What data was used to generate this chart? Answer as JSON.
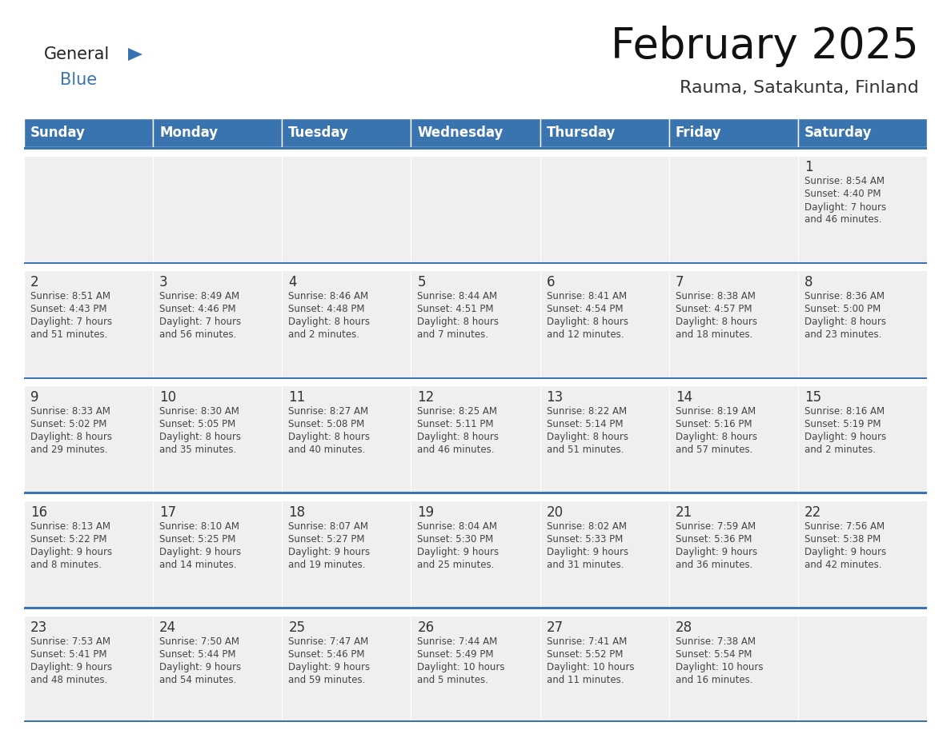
{
  "title": "February 2025",
  "subtitle": "Rauma, Satakunta, Finland",
  "header_color": "#3a74b0",
  "header_text_color": "#ffffff",
  "cell_bg_color": "#efefef",
  "cell_bg_empty": "#ffffff",
  "cell_border_color": "#3a74b0",
  "row_divider_color": "#3a74b0",
  "day_number_color": "#333333",
  "info_text_color": "#444444",
  "bg_color": "#ffffff",
  "days_of_week": [
    "Sunday",
    "Monday",
    "Tuesday",
    "Wednesday",
    "Thursday",
    "Friday",
    "Saturday"
  ],
  "weeks": [
    [
      {
        "day": null,
        "info": ""
      },
      {
        "day": null,
        "info": ""
      },
      {
        "day": null,
        "info": ""
      },
      {
        "day": null,
        "info": ""
      },
      {
        "day": null,
        "info": ""
      },
      {
        "day": null,
        "info": ""
      },
      {
        "day": 1,
        "info": "Sunrise: 8:54 AM\nSunset: 4:40 PM\nDaylight: 7 hours\nand 46 minutes."
      }
    ],
    [
      {
        "day": 2,
        "info": "Sunrise: 8:51 AM\nSunset: 4:43 PM\nDaylight: 7 hours\nand 51 minutes."
      },
      {
        "day": 3,
        "info": "Sunrise: 8:49 AM\nSunset: 4:46 PM\nDaylight: 7 hours\nand 56 minutes."
      },
      {
        "day": 4,
        "info": "Sunrise: 8:46 AM\nSunset: 4:48 PM\nDaylight: 8 hours\nand 2 minutes."
      },
      {
        "day": 5,
        "info": "Sunrise: 8:44 AM\nSunset: 4:51 PM\nDaylight: 8 hours\nand 7 minutes."
      },
      {
        "day": 6,
        "info": "Sunrise: 8:41 AM\nSunset: 4:54 PM\nDaylight: 8 hours\nand 12 minutes."
      },
      {
        "day": 7,
        "info": "Sunrise: 8:38 AM\nSunset: 4:57 PM\nDaylight: 8 hours\nand 18 minutes."
      },
      {
        "day": 8,
        "info": "Sunrise: 8:36 AM\nSunset: 5:00 PM\nDaylight: 8 hours\nand 23 minutes."
      }
    ],
    [
      {
        "day": 9,
        "info": "Sunrise: 8:33 AM\nSunset: 5:02 PM\nDaylight: 8 hours\nand 29 minutes."
      },
      {
        "day": 10,
        "info": "Sunrise: 8:30 AM\nSunset: 5:05 PM\nDaylight: 8 hours\nand 35 minutes."
      },
      {
        "day": 11,
        "info": "Sunrise: 8:27 AM\nSunset: 5:08 PM\nDaylight: 8 hours\nand 40 minutes."
      },
      {
        "day": 12,
        "info": "Sunrise: 8:25 AM\nSunset: 5:11 PM\nDaylight: 8 hours\nand 46 minutes."
      },
      {
        "day": 13,
        "info": "Sunrise: 8:22 AM\nSunset: 5:14 PM\nDaylight: 8 hours\nand 51 minutes."
      },
      {
        "day": 14,
        "info": "Sunrise: 8:19 AM\nSunset: 5:16 PM\nDaylight: 8 hours\nand 57 minutes."
      },
      {
        "day": 15,
        "info": "Sunrise: 8:16 AM\nSunset: 5:19 PM\nDaylight: 9 hours\nand 2 minutes."
      }
    ],
    [
      {
        "day": 16,
        "info": "Sunrise: 8:13 AM\nSunset: 5:22 PM\nDaylight: 9 hours\nand 8 minutes."
      },
      {
        "day": 17,
        "info": "Sunrise: 8:10 AM\nSunset: 5:25 PM\nDaylight: 9 hours\nand 14 minutes."
      },
      {
        "day": 18,
        "info": "Sunrise: 8:07 AM\nSunset: 5:27 PM\nDaylight: 9 hours\nand 19 minutes."
      },
      {
        "day": 19,
        "info": "Sunrise: 8:04 AM\nSunset: 5:30 PM\nDaylight: 9 hours\nand 25 minutes."
      },
      {
        "day": 20,
        "info": "Sunrise: 8:02 AM\nSunset: 5:33 PM\nDaylight: 9 hours\nand 31 minutes."
      },
      {
        "day": 21,
        "info": "Sunrise: 7:59 AM\nSunset: 5:36 PM\nDaylight: 9 hours\nand 36 minutes."
      },
      {
        "day": 22,
        "info": "Sunrise: 7:56 AM\nSunset: 5:38 PM\nDaylight: 9 hours\nand 42 minutes."
      }
    ],
    [
      {
        "day": 23,
        "info": "Sunrise: 7:53 AM\nSunset: 5:41 PM\nDaylight: 9 hours\nand 48 minutes."
      },
      {
        "day": 24,
        "info": "Sunrise: 7:50 AM\nSunset: 5:44 PM\nDaylight: 9 hours\nand 54 minutes."
      },
      {
        "day": 25,
        "info": "Sunrise: 7:47 AM\nSunset: 5:46 PM\nDaylight: 9 hours\nand 59 minutes."
      },
      {
        "day": 26,
        "info": "Sunrise: 7:44 AM\nSunset: 5:49 PM\nDaylight: 10 hours\nand 5 minutes."
      },
      {
        "day": 27,
        "info": "Sunrise: 7:41 AM\nSunset: 5:52 PM\nDaylight: 10 hours\nand 11 minutes."
      },
      {
        "day": 28,
        "info": "Sunrise: 7:38 AM\nSunset: 5:54 PM\nDaylight: 10 hours\nand 16 minutes."
      },
      {
        "day": null,
        "info": ""
      }
    ]
  ],
  "logo_text_general": "General",
  "logo_text_blue": "Blue",
  "logo_color_general": "#222222",
  "logo_color_blue": "#3a74b0",
  "logo_triangle_color": "#3a74b0",
  "title_fontsize": 38,
  "subtitle_fontsize": 16,
  "header_fontsize": 12,
  "day_num_fontsize": 12,
  "info_fontsize": 8.5
}
